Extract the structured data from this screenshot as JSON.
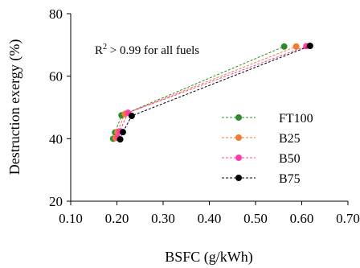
{
  "chart_data": {
    "type": "scatter",
    "xlabel": "BSFC (g/kWh)",
    "ylabel": "Destruction exergy (%)",
    "xlim": [
      0.1,
      0.7
    ],
    "ylim": [
      20,
      80
    ],
    "xticks": [
      0.1,
      0.2,
      0.3,
      0.4,
      0.5,
      0.6,
      0.7
    ],
    "yticks": [
      20,
      40,
      60,
      80
    ],
    "xtick_labels": [
      "0.10",
      "0.20",
      "0.30",
      "0.40",
      "0.50",
      "0.60",
      "0.70"
    ],
    "ytick_labels": [
      "20",
      "40",
      "60",
      "80"
    ],
    "grid": false,
    "legend_position": "right",
    "annotation": {
      "prefix": "R",
      "superscript": "2",
      "suffix": " > 0.99 for all fuels"
    },
    "series": [
      {
        "name": "FT100",
        "color": "#2e8b2e",
        "points": [
          [
            0.192,
            40.0
          ],
          [
            0.196,
            42.0
          ],
          [
            0.21,
            47.5
          ],
          [
            0.562,
            69.5
          ]
        ]
      },
      {
        "name": "B25",
        "color": "#ed7d31",
        "points": [
          [
            0.197,
            40.2
          ],
          [
            0.201,
            42.2
          ],
          [
            0.217,
            47.9
          ],
          [
            0.588,
            69.5
          ]
        ]
      },
      {
        "name": "B50",
        "color": "#ff3ea5",
        "points": [
          [
            0.202,
            40.4
          ],
          [
            0.206,
            42.3
          ],
          [
            0.224,
            48.3
          ],
          [
            0.61,
            69.6
          ]
        ]
      },
      {
        "name": "B75",
        "color": "#000000",
        "points": [
          [
            0.207,
            39.8
          ],
          [
            0.213,
            42.1
          ],
          [
            0.232,
            47.3
          ],
          [
            0.618,
            69.7
          ]
        ]
      }
    ]
  }
}
